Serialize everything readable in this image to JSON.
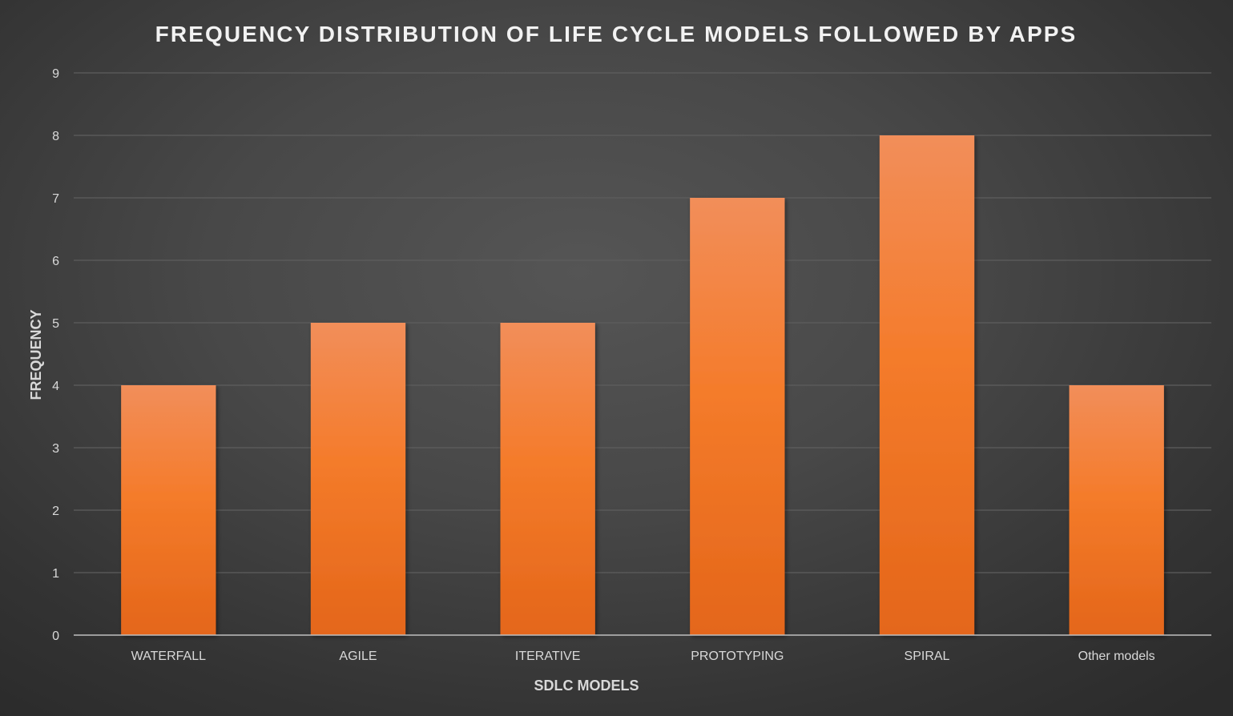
{
  "chart_data": {
    "type": "bar",
    "title": "FREQUENCY DISTRIBUTION OF LIFE CYCLE MODELS FOLLOWED BY APPS",
    "xlabel": "SDLC MODELS",
    "ylabel": "FREQUENCY",
    "categories": [
      "WATERFALL",
      "AGILE",
      "ITERATIVE",
      "PROTOTYPING",
      "SPIRAL",
      "Other models"
    ],
    "values": [
      4,
      5,
      5,
      7,
      8,
      4
    ],
    "ylim": [
      0,
      9
    ],
    "yticks": [
      "0",
      "1",
      "2",
      "3",
      "4",
      "5",
      "6",
      "7",
      "8",
      "9"
    ],
    "grid": true,
    "legend": "none",
    "colors": {
      "bar_top": "#f28e5a",
      "bar_mid": "#f47b2a",
      "bar_bottom": "#e4661a",
      "background": "#474747"
    }
  }
}
